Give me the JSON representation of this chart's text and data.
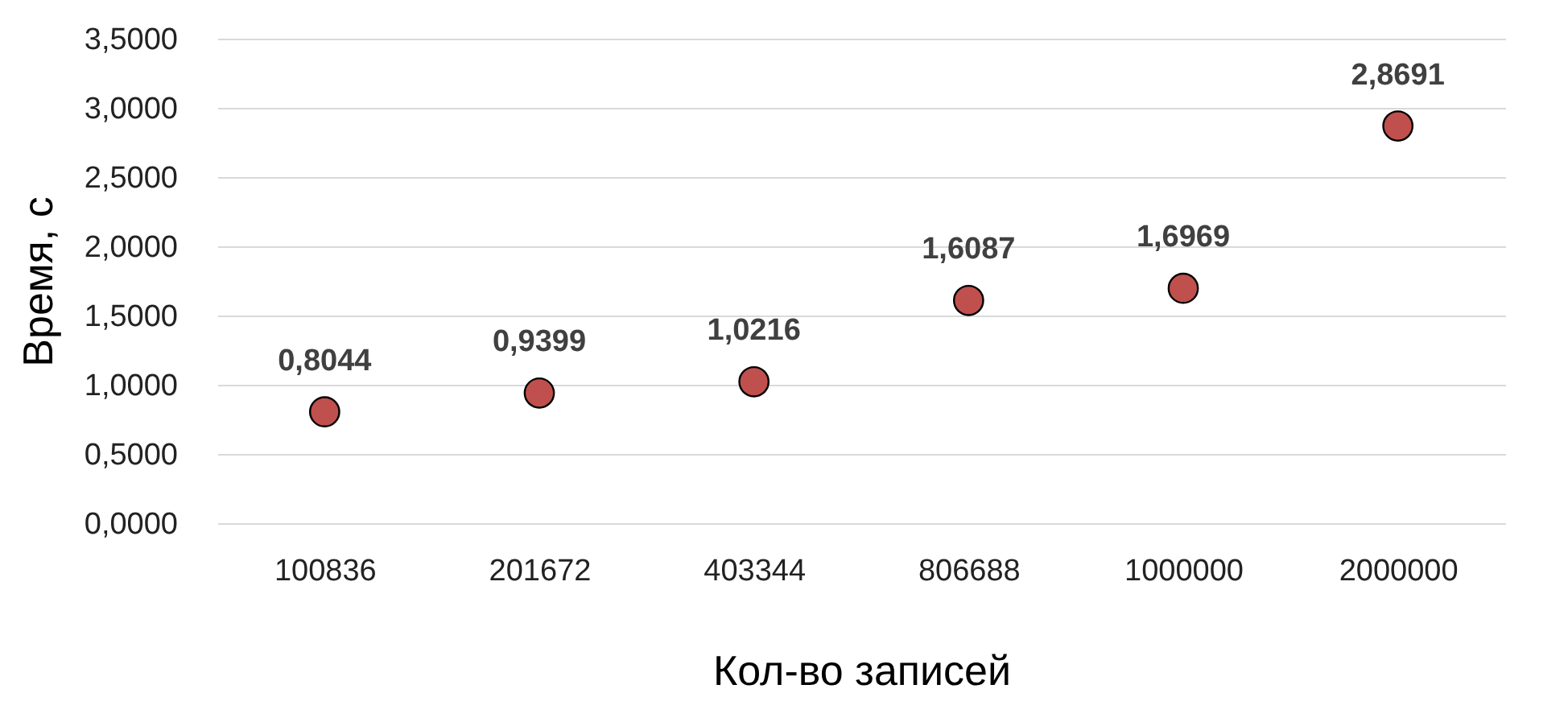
{
  "chart_data": {
    "type": "scatter",
    "xlabel": "Кол-во записей",
    "ylabel": "Время, с",
    "categories": [
      "100836",
      "201672",
      "403344",
      "806688",
      "1000000",
      "2000000"
    ],
    "series": [
      {
        "color": "#c0504d",
        "values": [
          0.8044,
          0.9399,
          1.0216,
          1.6087,
          1.6969,
          2.8691
        ]
      }
    ],
    "value_labels": [
      "0,8044",
      "0,9399",
      "1,0216",
      "1,6087",
      "1,6969",
      "2,8691"
    ],
    "ylim": [
      0,
      3.5
    ],
    "yticks": [
      {
        "value": 0,
        "label": "0,0000"
      },
      {
        "value": 0.5,
        "label": "0,5000"
      },
      {
        "value": 1,
        "label": "1,0000"
      },
      {
        "value": 1.5,
        "label": "1,5000"
      },
      {
        "value": 2,
        "label": "2,0000"
      },
      {
        "value": 2.5,
        "label": "2,5000"
      },
      {
        "value": 3,
        "label": "3,0000"
      },
      {
        "value": 3.5,
        "label": "3,5000"
      }
    ],
    "grid": "y",
    "marker": "circle",
    "legend": false
  }
}
